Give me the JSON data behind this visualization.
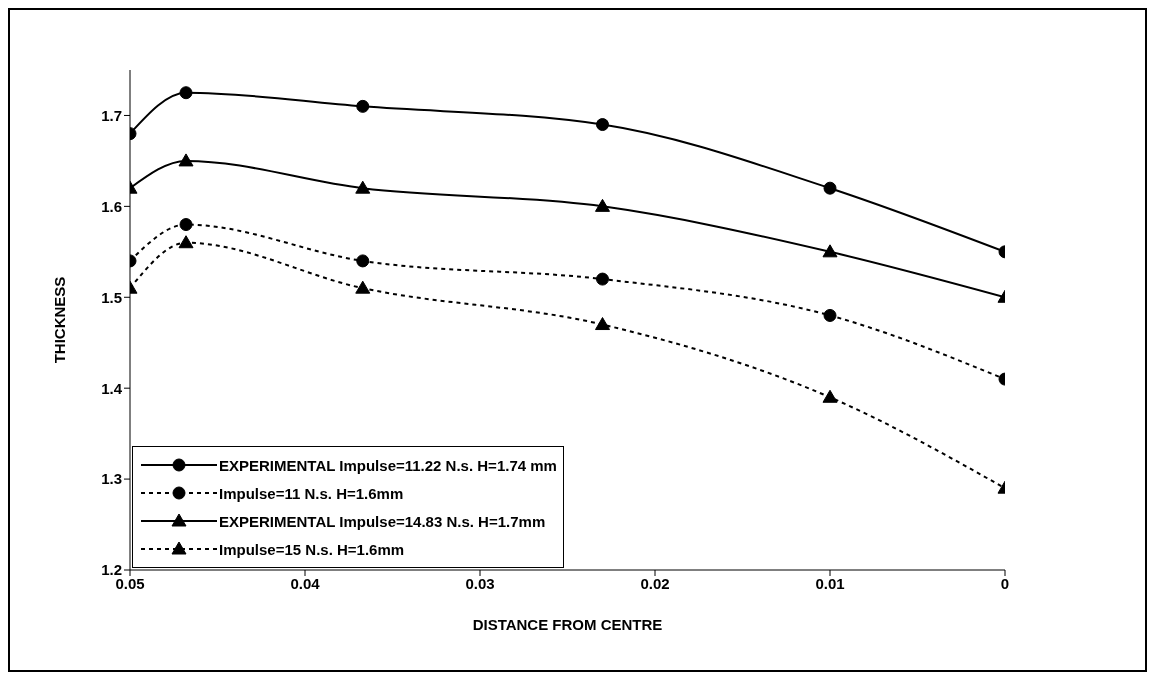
{
  "chart_data": {
    "type": "line",
    "xlabel": "DISTANCE FROM CENTRE",
    "ylabel": "THICKNESS",
    "x": [
      0.05,
      0.0468,
      0.0367,
      0.023,
      0.01,
      0
    ],
    "xlim": [
      0.05,
      0
    ],
    "xticks": [
      0.05,
      0.04,
      0.03,
      0.02,
      0.01,
      0
    ],
    "ylim": [
      1.2,
      1.75
    ],
    "yticks": [
      1.2,
      1.3,
      1.4,
      1.5,
      1.6,
      1.7
    ],
    "grid": false,
    "legend": "bottom left",
    "series": [
      {
        "name": "EXPERIMENTAL Impulse=11.22 N.s. H=1.74 mm",
        "color": "#000000",
        "marker": "circle",
        "line_style": "solid",
        "values": [
          1.68,
          1.725,
          1.71,
          1.69,
          1.62,
          1.55
        ]
      },
      {
        "name": "Impulse=11 N.s. H=1.6mm",
        "color": "#000000",
        "marker": "circle",
        "line_style": "dotted",
        "values": [
          1.54,
          1.58,
          1.54,
          1.52,
          1.48,
          1.41
        ]
      },
      {
        "name": "EXPERIMENTAL Impulse=14.83 N.s. H=1.7mm",
        "color": "#000000",
        "marker": "triangle",
        "line_style": "solid",
        "values": [
          1.62,
          1.65,
          1.62,
          1.6,
          1.55,
          1.5
        ]
      },
      {
        "name": "Impulse=15 N.s. H=1.6mm",
        "color": "#000000",
        "marker": "triangle",
        "line_style": "dotted",
        "values": [
          1.51,
          1.56,
          1.51,
          1.47,
          1.39,
          1.29
        ]
      }
    ]
  }
}
